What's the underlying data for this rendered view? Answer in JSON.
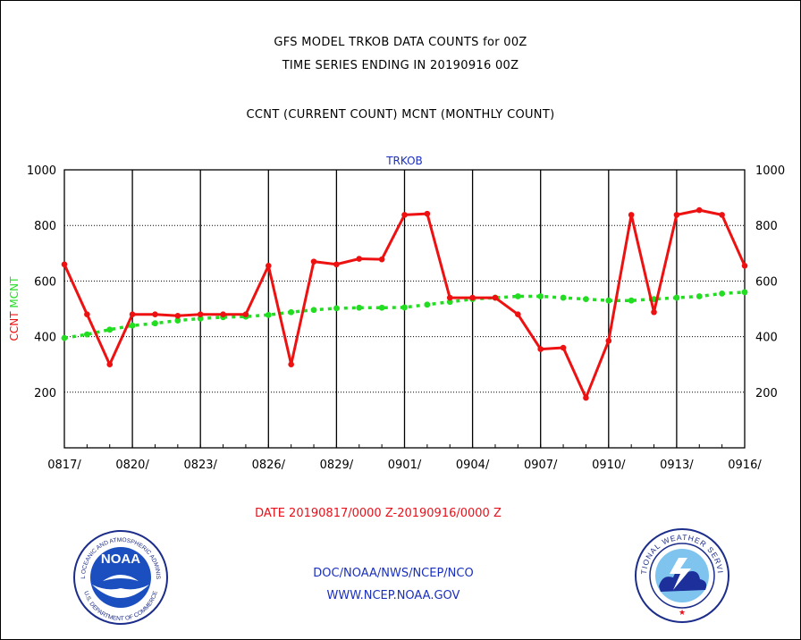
{
  "header": {
    "line1": "GFS MODEL TRKOB DATA COUNTS for 00Z",
    "line2": "TIME SERIES ENDING IN 20190916 00Z",
    "line3": "CCNT (CURRENT COUNT) MCNT (MONTHLY COUNT)"
  },
  "footer": {
    "date_range": "DATE 20190817/0000 Z-20190916/0000 Z",
    "org": "DOC/NOAA/NWS/NCEP/NCO",
    "url": "WWW.NCEP.NOAA.GOV"
  },
  "logos": {
    "left": {
      "inner": "NOAA",
      "ring_top": "NATIONAL OCEANIC AND ATMOSPHERIC ADMINISTRATION",
      "ring_bottom": "U.S. DEPARTMENT OF COMMERCE"
    },
    "right": {
      "ring_top": "NATIONAL WEATHER SERVICE"
    }
  },
  "colors": {
    "ccnt": "#ee1111",
    "mcnt": "#22dd22",
    "title": "#1a2fbf",
    "grid": "#000000"
  },
  "chart_data": {
    "type": "line",
    "title": "TRKOB",
    "ylabel_parts": [
      {
        "text": "CCNT",
        "color": "#ee1111"
      },
      {
        "text": "MCNT",
        "color": "#22dd22"
      }
    ],
    "ylim": [
      0,
      1000
    ],
    "y_ticks": [
      200,
      400,
      600,
      800,
      1000
    ],
    "x_tick_labels": [
      "0817/",
      "0820/",
      "0823/",
      "0826/",
      "0829/",
      "0901/",
      "0904/",
      "0907/",
      "0910/",
      "0913/",
      "0916/"
    ],
    "x_count": 31,
    "series": [
      {
        "name": "CCNT",
        "values": [
          660,
          480,
          300,
          480,
          480,
          475,
          480,
          480,
          480,
          655,
          300,
          670,
          660,
          680,
          678,
          838,
          842,
          540,
          540,
          540,
          480,
          355,
          360,
          180,
          385,
          838,
          488,
          838,
          855,
          838,
          655
        ]
      },
      {
        "name": "MCNT",
        "values": [
          395,
          408,
          425,
          440,
          448,
          458,
          465,
          470,
          472,
          478,
          488,
          496,
          502,
          504,
          504,
          505,
          515,
          525,
          535,
          540,
          545,
          545,
          540,
          535,
          530,
          530,
          535,
          540,
          545,
          555,
          560
        ]
      }
    ]
  }
}
